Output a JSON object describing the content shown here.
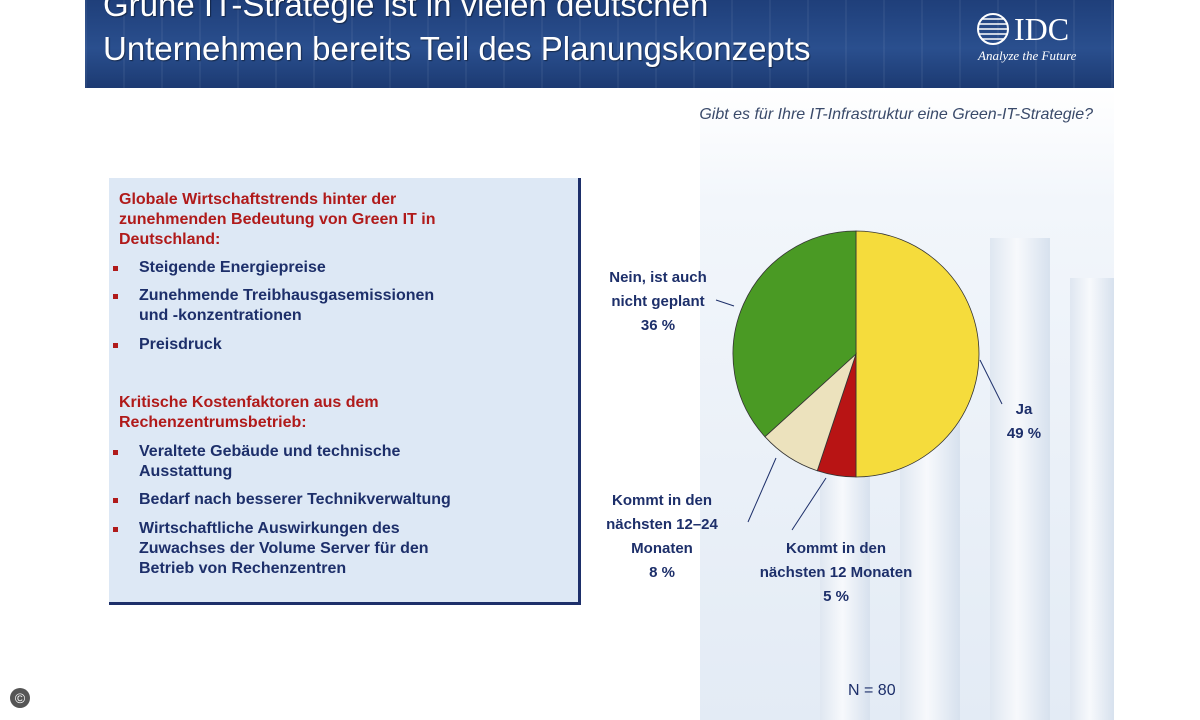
{
  "header": {
    "title_line1": "Grüne IT-Strategie ist in vielen deutschen",
    "title_line2": "Unternehmen bereits Teil des Planungskonzepts",
    "logo_text": "IDC",
    "logo_tagline": "Analyze the Future"
  },
  "question": "Gibt es für Ihre IT-Infrastruktur eine Green-IT-Strategie?",
  "infobox": {
    "section1_heading": "Globale Wirtschaftstrends hinter der\nzunehmenden Bedeutung von Green IT in\nDeutschland:",
    "section1_items": [
      "Steigende Energiepreise",
      "Zunehmende Treibhausgasemissionen\nund -konzentrationen",
      "Preisdruck"
    ],
    "section2_heading": "Kritische Kostenfaktoren aus dem\nRechenzentrumsbetrieb:",
    "section2_items": [
      "Veraltete Gebäude und technische\nAusstattung",
      "Bedarf nach besserer Technikverwaltung",
      "Wirtschaftliche Auswirkungen des\nZuwachses der Volume Server für den\nBetrieb von Rechenzentren"
    ]
  },
  "chart_data": {
    "type": "pie",
    "title": "Gibt es für Ihre IT-Infrastruktur eine Green-IT-Strategie?",
    "slices": [
      {
        "label": "Ja",
        "value": 49,
        "value_label": "49 %",
        "color": "#f5dc3c"
      },
      {
        "label": "Kommt in den nächsten 12 Monaten",
        "value": 5,
        "value_label": "5 %",
        "color": "#b81414"
      },
      {
        "label": "Kommt in den nächsten 12–24 Monaten",
        "value": 8,
        "value_label": "8 %",
        "color": "#ece2bd"
      },
      {
        "label": "Nein, ist auch nicht geplant",
        "value": 36,
        "value_label": "36 %",
        "color": "#4a9a24"
      }
    ],
    "sample_size": "N = 80"
  },
  "copyright_symbol": "©"
}
